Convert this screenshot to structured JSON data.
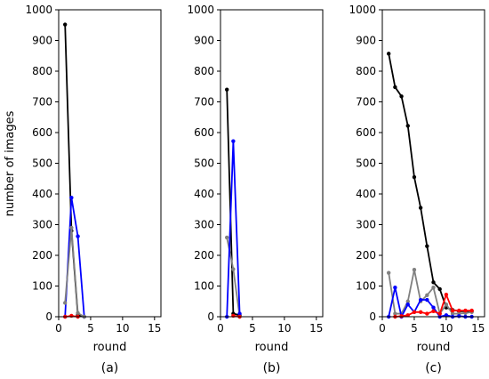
{
  "ylabel": "number of images",
  "chart_data": [
    {
      "type": "line",
      "caption": "(a)",
      "xlabel": "round",
      "ylabel": "number of images",
      "xlim": [
        0,
        16
      ],
      "ylim": [
        0,
        1000
      ],
      "xticks": [
        0,
        5,
        10,
        15
      ],
      "yticks": [
        0,
        100,
        200,
        300,
        400,
        500,
        600,
        700,
        800,
        900,
        1000
      ],
      "grid": false,
      "series": [
        {
          "color": "#000000",
          "points": [
            [
              1,
              952
            ],
            [
              2,
              280
            ],
            [
              3,
              5
            ],
            [
              4,
              0
            ]
          ]
        },
        {
          "color": "#0000ff",
          "points": [
            [
              1,
              0
            ],
            [
              2,
              388
            ],
            [
              3,
              262
            ],
            [
              4,
              0
            ]
          ]
        },
        {
          "color": "#808080",
          "points": [
            [
              1,
              45
            ],
            [
              2,
              290
            ],
            [
              3,
              12
            ],
            [
              4,
              0
            ]
          ]
        },
        {
          "color": "#ff0000",
          "points": [
            [
              1,
              0
            ],
            [
              2,
              3
            ],
            [
              3,
              0
            ]
          ]
        }
      ]
    },
    {
      "type": "line",
      "caption": "(b)",
      "xlabel": "round",
      "xlim": [
        0,
        16
      ],
      "ylim": [
        0,
        1000
      ],
      "xticks": [
        0,
        5,
        10,
        15
      ],
      "yticks": [
        0,
        100,
        200,
        300,
        400,
        500,
        600,
        700,
        800,
        900,
        1000
      ],
      "grid": false,
      "series": [
        {
          "color": "#000000",
          "points": [
            [
              1,
              740
            ],
            [
              2,
              10
            ],
            [
              3,
              5
            ]
          ]
        },
        {
          "color": "#808080",
          "points": [
            [
              1,
              258
            ],
            [
              2,
              155
            ],
            [
              3,
              0
            ]
          ]
        },
        {
          "color": "#0000ff",
          "points": [
            [
              1,
              0
            ],
            [
              2,
              572
            ],
            [
              3,
              10
            ]
          ]
        },
        {
          "color": "#ff0000",
          "points": [
            [
              2,
              3
            ],
            [
              3,
              0
            ]
          ]
        }
      ]
    },
    {
      "type": "line",
      "caption": "(c)",
      "xlabel": "round",
      "xlim": [
        0,
        16
      ],
      "ylim": [
        0,
        1000
      ],
      "xticks": [
        0,
        5,
        10,
        15
      ],
      "yticks": [
        0,
        100,
        200,
        300,
        400,
        500,
        600,
        700,
        800,
        900,
        1000
      ],
      "grid": false,
      "series": [
        {
          "color": "#000000",
          "points": [
            [
              1,
              857
            ],
            [
              2,
              748
            ],
            [
              3,
              718
            ],
            [
              4,
              622
            ],
            [
              5,
              455
            ],
            [
              6,
              355
            ],
            [
              7,
              230
            ],
            [
              8,
              112
            ],
            [
              9,
              90
            ],
            [
              10,
              30
            ],
            [
              11,
              22
            ],
            [
              12,
              18
            ],
            [
              13,
              18
            ],
            [
              14,
              18
            ]
          ]
        },
        {
          "color": "#808080",
          "points": [
            [
              1,
              143
            ],
            [
              2,
              10
            ],
            [
              3,
              10
            ],
            [
              4,
              50
            ],
            [
              5,
              153
            ],
            [
              6,
              50
            ],
            [
              7,
              70
            ],
            [
              8,
              95
            ],
            [
              9,
              10
            ],
            [
              10,
              40
            ],
            [
              11,
              10
            ],
            [
              12,
              10
            ],
            [
              13,
              12
            ],
            [
              14,
              15
            ]
          ]
        },
        {
          "color": "#0000ff",
          "points": [
            [
              1,
              0
            ],
            [
              2,
              95
            ],
            [
              3,
              0
            ],
            [
              4,
              40
            ],
            [
              5,
              15
            ],
            [
              6,
              55
            ],
            [
              7,
              55
            ],
            [
              8,
              30
            ],
            [
              9,
              0
            ],
            [
              10,
              5
            ],
            [
              11,
              0
            ],
            [
              12,
              2
            ],
            [
              13,
              0
            ],
            [
              14,
              0
            ]
          ]
        },
        {
          "color": "#ff0000",
          "points": [
            [
              2,
              0
            ],
            [
              3,
              2
            ],
            [
              4,
              5
            ],
            [
              5,
              15
            ],
            [
              6,
              15
            ],
            [
              7,
              10
            ],
            [
              8,
              18
            ],
            [
              9,
              10
            ],
            [
              10,
              72
            ],
            [
              11,
              20
            ],
            [
              12,
              20
            ],
            [
              13,
              20
            ],
            [
              14,
              20
            ]
          ]
        }
      ]
    }
  ]
}
